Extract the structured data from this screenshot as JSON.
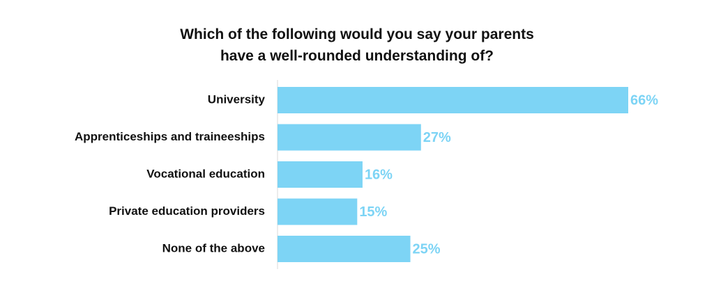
{
  "colors": {
    "bar": "#7dd4f5",
    "value_label": "#7dd4f5",
    "axis": "#d9d9d9",
    "text": "#111111"
  },
  "chart_data": {
    "type": "bar",
    "orientation": "horizontal",
    "title_lines": [
      "Which of the following would you say your parents",
      "have a well-rounded understanding of?"
    ],
    "categories": [
      "University",
      "Apprenticeships and traineeships",
      "Vocational education",
      "Private education providers",
      "None of the above"
    ],
    "values": [
      66,
      27,
      16,
      15,
      25
    ],
    "value_labels": [
      "66%",
      "27%",
      "16%",
      "15%",
      "25%"
    ],
    "unit": "%",
    "xlim": [
      0,
      66
    ],
    "grid": false,
    "legend": "none"
  }
}
